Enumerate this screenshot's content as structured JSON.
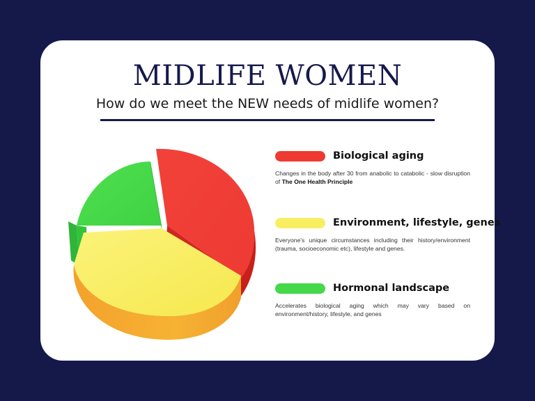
{
  "header": {
    "title": "MIDLIFE WOMEN",
    "subtitle": "How do we meet the NEW needs of midlife women?"
  },
  "legend": [
    {
      "label": "Biological aging",
      "color": "#ee3a32",
      "description": "Changes in the body after 30 from anabolic to catabolic - slow disruption of ",
      "description_bold": "The One Health Principle"
    },
    {
      "label": "Environment, lifestyle, genes",
      "color": "#f9ee62",
      "description": "Everyone's unique circumstances including their history/environment (trauma, socioeconomic etc), lifestyle and genes."
    },
    {
      "label": "Hormonal landscape",
      "color": "#45d84a",
      "description": "Accelerates biological aging which may vary based on environment/history, lifestyle, and genes"
    }
  ],
  "chart_data": {
    "type": "pie",
    "categories": [
      "Biological aging",
      "Environment, lifestyle, genes",
      "Hormonal landscape"
    ],
    "values": [
      35,
      43,
      22
    ],
    "colors": {
      "Biological aging": "#ee3a32",
      "Environment, lifestyle, genes": "#f9d63a",
      "Hormonal landscape": "#45d84a"
    },
    "style": "3d-exploded"
  }
}
